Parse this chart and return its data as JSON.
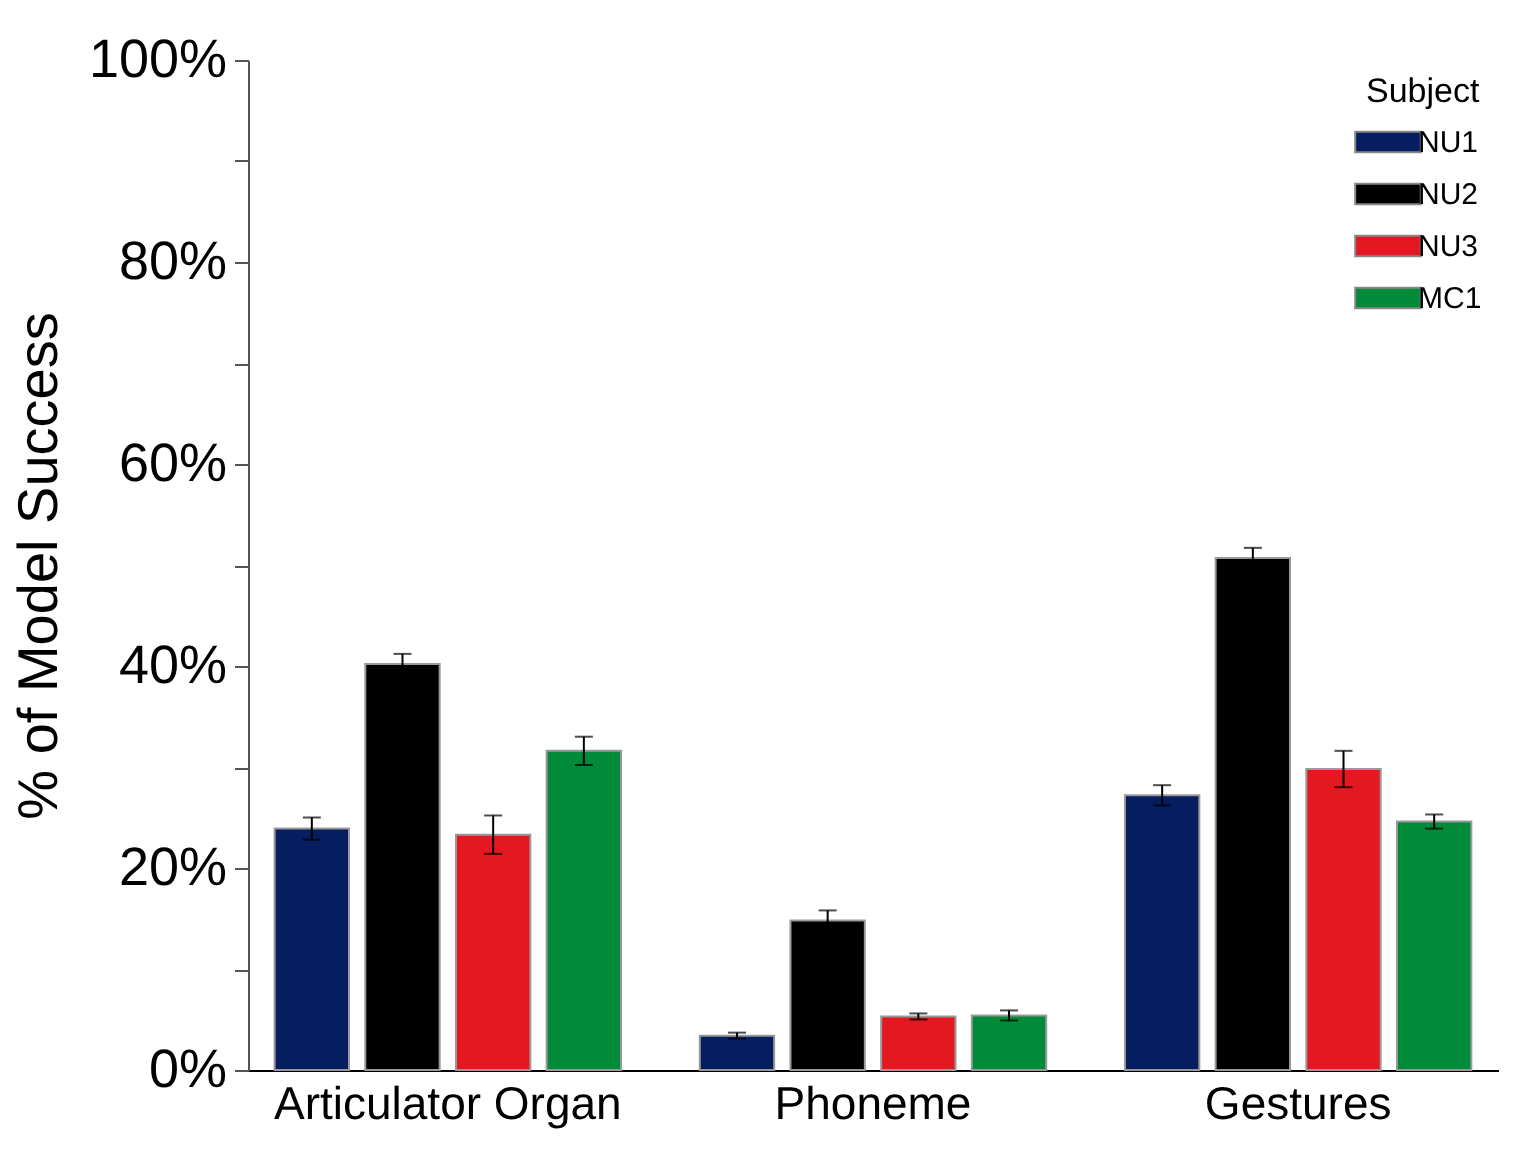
{
  "chart_data": {
    "type": "bar",
    "ylabel": "% of Model Success",
    "legend_title": "Subject",
    "categories": [
      "Articulator Organ",
      "Phoneme",
      "Gestures"
    ],
    "series": [
      {
        "name": "NU1",
        "color": "#061e60",
        "values": [
          23.9,
          3.4,
          27.2
        ],
        "errors": [
          1.1,
          0.3,
          1
        ]
      },
      {
        "name": "NU2",
        "color": "#000000",
        "values": [
          40.2,
          14.8,
          50.7
        ],
        "errors": [
          1,
          1,
          1
        ]
      },
      {
        "name": "NU3",
        "color": "#e31820",
        "values": [
          23.3,
          5.3,
          29.8
        ],
        "errors": [
          1.9,
          0.3,
          1.8
        ]
      },
      {
        "name": "MC1",
        "color": "#008a3a",
        "values": [
          31.6,
          5.4,
          24.6
        ],
        "errors": [
          1.4,
          0.5,
          0.7
        ]
      }
    ],
    "ylim": [
      0,
      100
    ],
    "yticks": [
      {
        "value": 0,
        "label": "0%"
      },
      {
        "value": 10,
        "label": null
      },
      {
        "value": 20,
        "label": "20%"
      },
      {
        "value": 30,
        "label": null
      },
      {
        "value": 40,
        "label": "40%"
      },
      {
        "value": 50,
        "label": null
      },
      {
        "value": 60,
        "label": "60%"
      },
      {
        "value": 70,
        "label": null
      },
      {
        "value": 80,
        "label": "80%"
      },
      {
        "value": 90,
        "label": null
      },
      {
        "value": 100,
        "label": "100%"
      }
    ],
    "grid": false,
    "legend": "top right"
  }
}
